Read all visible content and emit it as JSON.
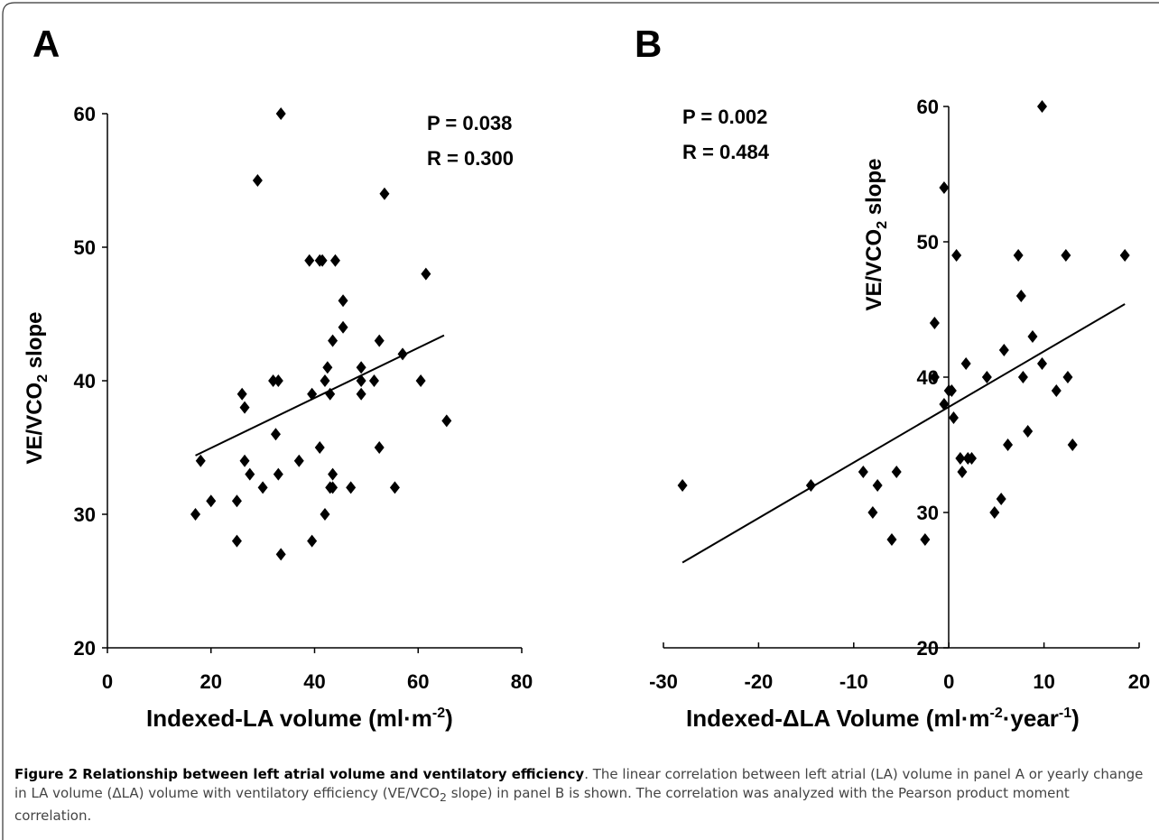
{
  "chart_data": [
    {
      "type": "scatter",
      "panel_label": "A",
      "xlabel_main": "Indexed-LA volume (ml·m",
      "xlabel_sup": "-2",
      "xlabel_end": ")",
      "ylabel_main": "VE/VCO",
      "ylabel_sub": "2",
      "ylabel_end": " slope",
      "xlim": [
        0,
        80
      ],
      "ylim": [
        20,
        60
      ],
      "x_ticks": [
        "0",
        "20",
        "40",
        "60",
        "80"
      ],
      "y_ticks": [
        "20",
        "30",
        "40",
        "50",
        "60"
      ],
      "annotations": [
        "P = 0.038",
        "R = 0.300"
      ],
      "trendline": {
        "x": [
          17,
          65
        ],
        "y": [
          34.4,
          43.4
        ]
      },
      "points": [
        {
          "x": 17,
          "y": 30
        },
        {
          "x": 18,
          "y": 34
        },
        {
          "x": 20,
          "y": 31
        },
        {
          "x": 25,
          "y": 31
        },
        {
          "x": 25,
          "y": 28
        },
        {
          "x": 26,
          "y": 39
        },
        {
          "x": 26.5,
          "y": 38
        },
        {
          "x": 26.5,
          "y": 34
        },
        {
          "x": 27.5,
          "y": 33
        },
        {
          "x": 29,
          "y": 55
        },
        {
          "x": 30,
          "y": 32
        },
        {
          "x": 32,
          "y": 40
        },
        {
          "x": 33,
          "y": 40
        },
        {
          "x": 32.5,
          "y": 36
        },
        {
          "x": 33,
          "y": 33
        },
        {
          "x": 33.5,
          "y": 60
        },
        {
          "x": 33.5,
          "y": 27
        },
        {
          "x": 37,
          "y": 34
        },
        {
          "x": 39,
          "y": 49
        },
        {
          "x": 39.5,
          "y": 39
        },
        {
          "x": 39.5,
          "y": 28
        },
        {
          "x": 41,
          "y": 35
        },
        {
          "x": 41,
          "y": 49
        },
        {
          "x": 41.5,
          "y": 49
        },
        {
          "x": 42,
          "y": 40
        },
        {
          "x": 42,
          "y": 30
        },
        {
          "x": 42.5,
          "y": 41
        },
        {
          "x": 43,
          "y": 39
        },
        {
          "x": 43,
          "y": 32
        },
        {
          "x": 43.5,
          "y": 32
        },
        {
          "x": 43.5,
          "y": 43
        },
        {
          "x": 43.5,
          "y": 33
        },
        {
          "x": 44,
          "y": 49
        },
        {
          "x": 45.5,
          "y": 46
        },
        {
          "x": 45.5,
          "y": 44
        },
        {
          "x": 47,
          "y": 32
        },
        {
          "x": 49,
          "y": 40
        },
        {
          "x": 49,
          "y": 39
        },
        {
          "x": 49,
          "y": 41
        },
        {
          "x": 51.5,
          "y": 40
        },
        {
          "x": 52.5,
          "y": 43
        },
        {
          "x": 52.5,
          "y": 35
        },
        {
          "x": 53.5,
          "y": 54
        },
        {
          "x": 55.5,
          "y": 32
        },
        {
          "x": 57,
          "y": 42
        },
        {
          "x": 60.5,
          "y": 40
        },
        {
          "x": 61.5,
          "y": 48
        },
        {
          "x": 65.5,
          "y": 37
        }
      ]
    },
    {
      "type": "scatter",
      "panel_label": "B",
      "xlabel_main": "Indexed-ΔLA Volume (ml·m",
      "xlabel_sup": "-2",
      "xlabel_mid": "·year",
      "xlabel_sup2": "-1",
      "xlabel_end": ")",
      "ylabel_main": "VE/VCO",
      "ylabel_sub": "2",
      "ylabel_end": " slope",
      "xlim": [
        -30,
        20
      ],
      "ylim": [
        20,
        60
      ],
      "x_ticks": [
        "-30",
        "-20",
        "-10",
        "0",
        "10",
        "20"
      ],
      "y_ticks": [
        "20",
        "30",
        "40",
        "50",
        "60"
      ],
      "annotations": [
        "P = 0.002",
        "R = 0.484"
      ],
      "trendline": {
        "x": [
          -28,
          18.5
        ],
        "y": [
          26.3,
          45.4
        ]
      },
      "points": [
        {
          "x": -28,
          "y": 32
        },
        {
          "x": -14.5,
          "y": 32
        },
        {
          "x": -9,
          "y": 33
        },
        {
          "x": -8,
          "y": 30
        },
        {
          "x": -7.5,
          "y": 32
        },
        {
          "x": -6,
          "y": 28
        },
        {
          "x": -5.5,
          "y": 33
        },
        {
          "x": -2.5,
          "y": 28
        },
        {
          "x": -1.5,
          "y": 44
        },
        {
          "x": -1.5,
          "y": 40
        },
        {
          "x": -0.5,
          "y": 54
        },
        {
          "x": -0.5,
          "y": 38
        },
        {
          "x": 0,
          "y": 39
        },
        {
          "x": 0.3,
          "y": 39
        },
        {
          "x": 0.5,
          "y": 37
        },
        {
          "x": 0.8,
          "y": 49
        },
        {
          "x": 1.2,
          "y": 34
        },
        {
          "x": 1.4,
          "y": 33
        },
        {
          "x": 1.8,
          "y": 41
        },
        {
          "x": 2,
          "y": 34
        },
        {
          "x": 2.4,
          "y": 34
        },
        {
          "x": 4,
          "y": 40
        },
        {
          "x": 4.8,
          "y": 30
        },
        {
          "x": 5.5,
          "y": 31
        },
        {
          "x": 5.8,
          "y": 42
        },
        {
          "x": 6.2,
          "y": 35
        },
        {
          "x": 7.3,
          "y": 49
        },
        {
          "x": 7.6,
          "y": 46
        },
        {
          "x": 7.8,
          "y": 40
        },
        {
          "x": 8.3,
          "y": 36
        },
        {
          "x": 8.8,
          "y": 43
        },
        {
          "x": 9.8,
          "y": 60
        },
        {
          "x": 9.8,
          "y": 41
        },
        {
          "x": 11.3,
          "y": 39
        },
        {
          "x": 12.3,
          "y": 49
        },
        {
          "x": 12.5,
          "y": 40
        },
        {
          "x": 13,
          "y": 35
        },
        {
          "x": 18.5,
          "y": 49
        }
      ]
    }
  ],
  "caption": {
    "title": "Figure 2 Relationship between left atrial volume and ventilatory efficiency",
    "text_part1": ". The linear correlation between left atrial (LA) volume in panel A or yearly change in LA volume (ΔLA) volume with ventilatory efficiency (VE/VCO",
    "text_sub": "2",
    "text_part2": " slope) in panel B is shown. The correlation was analyzed with the Pearson product moment correlation."
  }
}
